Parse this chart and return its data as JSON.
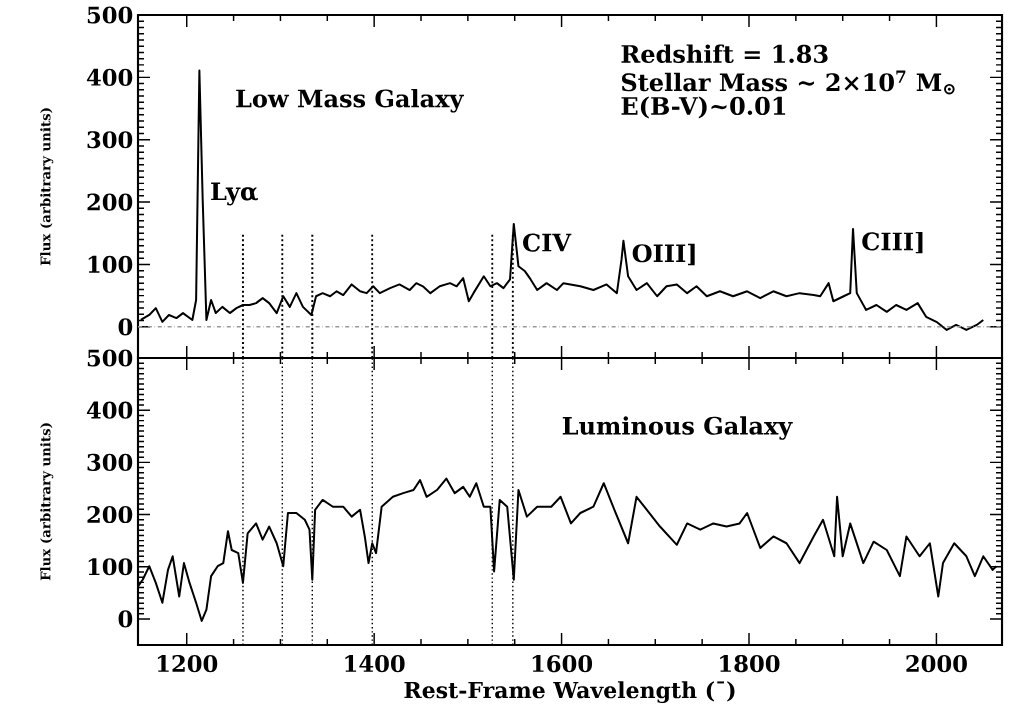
{
  "chart_data": [
    {
      "type": "line",
      "title": "Low Mass Galaxy",
      "ylabel": "Flux (arbitrary units)",
      "xlim": [
        1148,
        2070
      ],
      "xticks": [
        1200,
        1400,
        1600,
        1800,
        2000
      ],
      "ylim": [
        -50,
        500
      ],
      "yticks": [
        0,
        100,
        200,
        300,
        400,
        500
      ],
      "tick_labels": "y",
      "series": [
        {
          "color": "#000000",
          "x": [
            1151,
            1160,
            1167,
            1174,
            1181,
            1189,
            1196,
            1206,
            1210,
            1213.5,
            1217,
            1221,
            1226,
            1231,
            1238,
            1246,
            1253,
            1260,
            1267,
            1274,
            1281,
            1288,
            1296,
            1303,
            1310,
            1317,
            1324,
            1333,
            1338,
            1345,
            1353,
            1360,
            1367,
            1376,
            1385,
            1392,
            1399,
            1406,
            1417,
            1427,
            1438,
            1445,
            1452,
            1460,
            1470,
            1481,
            1488,
            1495,
            1501,
            1506,
            1517,
            1524,
            1531,
            1538,
            1545,
            1549,
            1554,
            1561,
            1567,
            1574,
            1584,
            1595,
            1602,
            1620,
            1634,
            1648,
            1659,
            1664,
            1666,
            1671,
            1680,
            1691,
            1702,
            1712,
            1723,
            1734,
            1744,
            1755,
            1769,
            1783,
            1798,
            1812,
            1826,
            1840,
            1854,
            1869,
            1876,
            1885,
            1890,
            1901,
            1908,
            1911,
            1915,
            1925,
            1936,
            1947,
            1957,
            1968,
            1980,
            1989,
            2000,
            2011,
            2021,
            2032,
            2043,
            2050
          ],
          "values": [
            11,
            19,
            30,
            8,
            19,
            14,
            22,
            11,
            43,
            411,
            205,
            11,
            43,
            22,
            32,
            22,
            30,
            35,
            35,
            38,
            46,
            38,
            22,
            49,
            32,
            54,
            32,
            19,
            49,
            54,
            49,
            57,
            51,
            68,
            57,
            54,
            65,
            54,
            62,
            68,
            59,
            70,
            65,
            54,
            65,
            70,
            65,
            78,
            41,
            54,
            81,
            65,
            70,
            62,
            76,
            165,
            97,
            89,
            76,
            59,
            70,
            59,
            70,
            65,
            59,
            68,
            54,
            108,
            138,
            81,
            59,
            70,
            49,
            65,
            68,
            54,
            65,
            49,
            57,
            49,
            57,
            46,
            57,
            49,
            54,
            51,
            49,
            70,
            41,
            49,
            54,
            157,
            54,
            27,
            35,
            24,
            35,
            27,
            38,
            16,
            8,
            -5,
            3,
            -5,
            3,
            11
          ]
        },
        {
          "type": "line",
          "color": "#000000",
          "line_style": "dotted",
          "x": [
            1260,
            1260
          ],
          "values": [
            -50,
            150
          ]
        },
        {
          "type": "line",
          "color": "#000000",
          "line_style": "dotted",
          "x": [
            1302,
            1302
          ],
          "values": [
            -50,
            150
          ]
        },
        {
          "type": "line",
          "color": "#000000",
          "line_style": "dotted",
          "x": [
            1334,
            1334
          ],
          "values": [
            -50,
            150
          ]
        },
        {
          "type": "line",
          "color": "#000000",
          "line_style": "dotted",
          "x": [
            1398,
            1398
          ],
          "values": [
            -50,
            150
          ]
        },
        {
          "type": "line",
          "color": "#000000",
          "line_style": "dotted",
          "x": [
            1526,
            1526
          ],
          "values": [
            -50,
            150
          ]
        },
        {
          "type": "line",
          "color": "#000000",
          "line_style": "dotted",
          "x": [
            1548,
            1548
          ],
          "values": [
            -50,
            150
          ]
        }
      ],
      "ref_lines": [
        {
          "axis": "y",
          "value": 0,
          "color": "#999999",
          "line_style": "dashdot"
        }
      ],
      "annotations": [
        "Redshift = 1.83",
        "Stellar Mass ~ 2×10$^{7}$ M$_{⊙}$",
        "E(B-V)~0.01",
        {
          "text": "Lyα",
          "x": 1216,
          "y": 213
        },
        {
          "text": "CIV",
          "x": 1549,
          "y": 135
        },
        {
          "text": "OIII]",
          "x": 1666,
          "y": 116
        },
        {
          "text": "CIII]",
          "x": 1911,
          "y": 135
        }
      ]
    },
    {
      "type": "line",
      "title": "Luminous Galaxy",
      "ylabel": "Flux (arbitrary units)",
      "xlabel": "Rest-Frame Wavelength (¯)",
      "xlim": [
        1148,
        2070
      ],
      "xticks": [
        1200,
        1400,
        1600,
        1800,
        2000
      ],
      "ylim": [
        -50,
        500
      ],
      "yticks": [
        0,
        100,
        200,
        300,
        400,
        500
      ],
      "series": [
        {
          "color": "#000000",
          "x": [
            1148,
            1153,
            1160,
            1167,
            1174,
            1180,
            1185,
            1192,
            1197,
            1203,
            1210,
            1216,
            1221,
            1226,
            1233,
            1239,
            1244,
            1248,
            1255,
            1260,
            1265,
            1274,
            1281,
            1288,
            1296,
            1303,
            1308,
            1317,
            1326,
            1331,
            1334,
            1337,
            1345,
            1356,
            1367,
            1376,
            1385,
            1390,
            1394,
            1398,
            1402,
            1408,
            1420,
            1431,
            1442,
            1449,
            1456,
            1467,
            1477,
            1486,
            1495,
            1502,
            1509,
            1517,
            1524,
            1528,
            1534,
            1542,
            1549,
            1554,
            1563,
            1574,
            1589,
            1599,
            1610,
            1620,
            1634,
            1645,
            1655,
            1671,
            1680,
            1691,
            1705,
            1723,
            1734,
            1748,
            1762,
            1776,
            1790,
            1798,
            1812,
            1826,
            1840,
            1854,
            1869,
            1879,
            1891,
            1894,
            1900,
            1908,
            1922,
            1933,
            1947,
            1961,
            1968,
            1982,
            1993,
            2002,
            2007,
            2019,
            2032,
            2041,
            2050,
            2060,
            2064
          ],
          "values": [
            62,
            75,
            101,
            69,
            31,
            94,
            120,
            43,
            107,
            69,
            31,
            -4,
            18,
            82,
            101,
            107,
            168,
            132,
            126,
            69,
            164,
            183,
            152,
            177,
            145,
            101,
            203,
            203,
            190,
            171,
            75,
            209,
            228,
            215,
            215,
            196,
            209,
            158,
            107,
            145,
            126,
            215,
            234,
            241,
            247,
            266,
            234,
            247,
            269,
            241,
            253,
            234,
            260,
            215,
            215,
            91,
            228,
            215,
            75,
            247,
            196,
            215,
            215,
            234,
            183,
            203,
            215,
            260,
            215,
            145,
            234,
            209,
            177,
            142,
            183,
            171,
            183,
            177,
            183,
            203,
            136,
            158,
            145,
            107,
            158,
            190,
            120,
            234,
            120,
            183,
            107,
            148,
            132,
            82,
            158,
            120,
            145,
            43,
            107,
            145,
            120,
            82,
            120,
            94,
            101
          ]
        }
      ],
      "ref_lines": [
        {
          "axis": "x",
          "value": 1260,
          "line_style": "dotted",
          "color": "#000000"
        },
        {
          "axis": "x",
          "value": 1302,
          "line_style": "dotted",
          "color": "#000000"
        },
        {
          "axis": "x",
          "value": 1334,
          "line_style": "dotted",
          "color": "#000000"
        },
        {
          "axis": "x",
          "value": 1398,
          "line_style": "dotted",
          "color": "#000000"
        },
        {
          "axis": "x",
          "value": 1526,
          "line_style": "dotted",
          "color": "#000000"
        },
        {
          "axis": "x",
          "value": 1548,
          "line_style": "dotted",
          "color": "#000000"
        }
      ]
    }
  ]
}
